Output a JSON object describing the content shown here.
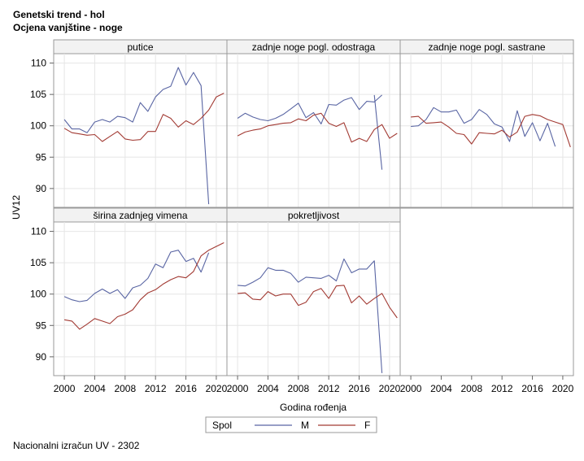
{
  "titles": {
    "line1": "Genetski trend - hol",
    "line2": "Ocjena vanjštine - noge"
  },
  "footnote": "Nacionalni izračun UV - 2302",
  "colors": {
    "M": "#5965a3",
    "F": "#a23a33",
    "grid": "#e6e6e6",
    "frame": "#999999",
    "header": "#f2f2f2"
  },
  "chart_data": {
    "type": "line",
    "xlabel": "Godina rođenja",
    "ylabel": "UV12",
    "xlim": [
      1998.6,
      2021.4
    ],
    "ylim": [
      87,
      111.5
    ],
    "xticks": [
      2000,
      2004,
      2008,
      2012,
      2016,
      2020
    ],
    "yticks": [
      90,
      95,
      100,
      105,
      110
    ],
    "grid": true,
    "legend": {
      "title": "Spol",
      "placement": "bottom",
      "entries": [
        "M",
        "F"
      ]
    },
    "panels": [
      {
        "title": "putice",
        "series": [
          {
            "name": "M",
            "x": [
              2000,
              2001,
              2002,
              2003,
              2004,
              2005,
              2006,
              2007,
              2008,
              2009,
              2010,
              2011,
              2012,
              2013,
              2014,
              2015,
              2016,
              2017,
              2018,
              2019
            ],
            "y": [
              101.0,
              99.5,
              99.5,
              98.9,
              100.6,
              101.0,
              100.6,
              101.5,
              101.3,
              100.6,
              103.7,
              102.3,
              104.6,
              105.8,
              106.3,
              109.3,
              106.5,
              108.5,
              106.4,
              87.5
            ]
          },
          {
            "name": "F",
            "x": [
              2000,
              2001,
              2002,
              2003,
              2004,
              2005,
              2006,
              2007,
              2008,
              2009,
              2010,
              2011,
              2012,
              2013,
              2014,
              2015,
              2016,
              2017,
              2018,
              2019,
              2020,
              2021
            ],
            "y": [
              99.6,
              98.9,
              98.7,
              98.5,
              98.6,
              97.5,
              98.3,
              99.1,
              97.9,
              97.7,
              97.8,
              99.1,
              99.1,
              101.8,
              101.2,
              99.8,
              100.8,
              100.2,
              101.2,
              102.5,
              104.6,
              105.2
            ]
          }
        ]
      },
      {
        "title": "zadnje noge pogl. odostraga",
        "series": [
          {
            "name": "M",
            "x": [
              2000,
              2001,
              2002,
              2003,
              2004,
              2005,
              2006,
              2007,
              2008,
              2009,
              2010,
              2011,
              2012,
              2013,
              2014,
              2015,
              2016,
              2017,
              2018,
              2019
            ],
            "y": [
              101.2,
              102.0,
              101.4,
              101.0,
              100.8,
              101.2,
              101.8,
              102.7,
              103.6,
              101.3,
              102.1,
              100.3,
              103.4,
              103.3,
              104.1,
              104.5,
              102.6,
              103.9,
              103.8,
              104.9
            ]
          },
          {
            "name": "M",
            "x": [
              2018,
              2019
            ],
            "y": [
              104.9,
              93.0
            ]
          },
          {
            "name": "F",
            "x": [
              2000,
              2001,
              2002,
              2003,
              2004,
              2005,
              2006,
              2007,
              2008,
              2009,
              2010,
              2011,
              2012,
              2013,
              2014,
              2015,
              2016,
              2017,
              2018,
              2019,
              2020,
              2021
            ],
            "y": [
              98.4,
              99.0,
              99.3,
              99.5,
              100.0,
              100.2,
              100.4,
              100.5,
              101.1,
              100.8,
              101.7,
              102.0,
              100.4,
              99.9,
              100.5,
              97.4,
              98.0,
              97.5,
              99.4,
              100.2,
              98.0,
              98.8
            ]
          }
        ]
      },
      {
        "title": "zadnje noge pogl. sastrane",
        "series": [
          {
            "name": "M",
            "x": [
              2000,
              2001,
              2002,
              2003,
              2004,
              2005,
              2006,
              2007,
              2008,
              2009,
              2010,
              2011,
              2012,
              2013,
              2014,
              2015,
              2016,
              2017,
              2018,
              2019
            ],
            "y": [
              99.9,
              100.0,
              101.0,
              102.9,
              102.2,
              102.2,
              102.5,
              100.4,
              101.0,
              102.6,
              101.8,
              100.3,
              99.8,
              97.5,
              102.4,
              98.3,
              100.5,
              97.6,
              100.4,
              96.7
            ]
          },
          {
            "name": "F",
            "x": [
              2000,
              2001,
              2002,
              2003,
              2004,
              2005,
              2006,
              2007,
              2008,
              2009,
              2010,
              2011,
              2012,
              2013,
              2014,
              2015,
              2016,
              2017,
              2018,
              2019,
              2020,
              2021
            ],
            "y": [
              101.4,
              101.5,
              100.4,
              100.5,
              100.6,
              99.8,
              98.8,
              98.6,
              97.1,
              98.9,
              98.8,
              98.7,
              99.3,
              98.2,
              99.0,
              101.5,
              101.8,
              101.6,
              101.0,
              100.6,
              100.2,
              96.6
            ]
          }
        ]
      },
      {
        "title": "širina zadnjeg vimena",
        "series": [
          {
            "name": "M",
            "x": [
              2000,
              2001,
              2002,
              2003,
              2004,
              2005,
              2006,
              2007,
              2008,
              2009,
              2010,
              2011,
              2012,
              2013,
              2014,
              2015,
              2016,
              2017,
              2018,
              2019
            ],
            "y": [
              99.6,
              99.1,
              98.8,
              99.0,
              100.1,
              100.8,
              100.1,
              100.7,
              99.3,
              101.0,
              101.4,
              102.5,
              104.8,
              104.2,
              106.7,
              107.0,
              105.2,
              105.7,
              103.5,
              106.6
            ]
          },
          {
            "name": "F",
            "x": [
              2000,
              2001,
              2002,
              2003,
              2004,
              2005,
              2006,
              2007,
              2008,
              2009,
              2010,
              2011,
              2012,
              2013,
              2014,
              2015,
              2016,
              2017,
              2018,
              2019,
              2020,
              2021
            ],
            "y": [
              95.9,
              95.7,
              94.4,
              95.2,
              96.1,
              95.7,
              95.3,
              96.4,
              96.8,
              97.5,
              99.1,
              100.2,
              100.7,
              101.6,
              102.3,
              102.8,
              102.6,
              103.6,
              106.1,
              107.0,
              107.6,
              108.2
            ]
          }
        ]
      },
      {
        "title": "pokretljivost",
        "series": [
          {
            "name": "M",
            "x": [
              2000,
              2001,
              2002,
              2003,
              2004,
              2005,
              2006,
              2007,
              2008,
              2009,
              2010,
              2011,
              2012,
              2013,
              2014,
              2015,
              2016,
              2017,
              2018,
              2019
            ],
            "y": [
              101.4,
              101.3,
              101.9,
              102.6,
              104.2,
              103.8,
              103.8,
              103.3,
              101.9,
              102.7,
              102.6,
              102.5,
              103.0,
              102.1,
              105.6,
              103.4,
              104.0,
              104.0,
              105.3,
              87.4
            ]
          },
          {
            "name": "F",
            "x": [
              2000,
              2001,
              2002,
              2003,
              2004,
              2005,
              2006,
              2007,
              2008,
              2009,
              2010,
              2011,
              2012,
              2013,
              2014,
              2015,
              2016,
              2017,
              2018,
              2019,
              2020,
              2021
            ],
            "y": [
              100.1,
              100.2,
              99.2,
              99.1,
              100.4,
              99.7,
              100.0,
              100.0,
              98.2,
              98.7,
              100.4,
              100.9,
              99.3,
              101.3,
              101.4,
              98.6,
              99.7,
              98.4,
              99.3,
              100.1,
              97.9,
              96.2
            ]
          }
        ]
      }
    ]
  }
}
